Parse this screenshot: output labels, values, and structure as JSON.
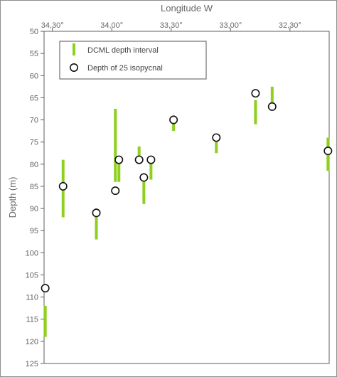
{
  "chart_data": {
    "type": "scatter",
    "title": "",
    "xlabel": "Longitude W",
    "ylabel": "Depth (m)",
    "xlim": [
      34.57,
      32.17
    ],
    "ylim": [
      50,
      125
    ],
    "x_axis_position": "top",
    "y_axis_inverted": true,
    "grid": false,
    "legend_position": "top-left",
    "x_ticks": [
      {
        "value": 34.5,
        "label": "34,30°"
      },
      {
        "value": 34.0,
        "label": "34,00°"
      },
      {
        "value": 33.5,
        "label": "33,30°"
      },
      {
        "value": 33.0,
        "label": "33,00°"
      },
      {
        "value": 32.5,
        "label": "32,30°"
      }
    ],
    "y_ticks": [
      50,
      55,
      60,
      65,
      70,
      75,
      80,
      85,
      90,
      95,
      100,
      105,
      110,
      115,
      120,
      125
    ],
    "series": [
      {
        "name": "DCML depth interval",
        "kind": "interval",
        "color": "#8fcf1f",
        "values": [
          {
            "x": 34.56,
            "y_top": 112,
            "y_bottom": 119
          },
          {
            "x": 34.41,
            "y_top": 79,
            "y_bottom": 92
          },
          {
            "x": 34.13,
            "y_top": 90,
            "y_bottom": 97
          },
          {
            "x": 33.97,
            "y_top": 67.5,
            "y_bottom": 84
          },
          {
            "x": 33.94,
            "y_top": 79,
            "y_bottom": 84
          },
          {
            "x": 33.77,
            "y_top": 76,
            "y_bottom": 80
          },
          {
            "x": 33.73,
            "y_top": 83,
            "y_bottom": 89
          },
          {
            "x": 33.67,
            "y_top": 79,
            "y_bottom": 83.5
          },
          {
            "x": 33.48,
            "y_top": 69,
            "y_bottom": 72.5
          },
          {
            "x": 33.12,
            "y_top": 73.5,
            "y_bottom": 77.5
          },
          {
            "x": 32.79,
            "y_top": 65.5,
            "y_bottom": 71
          },
          {
            "x": 32.65,
            "y_top": 62.5,
            "y_bottom": 67
          },
          {
            "x": 32.18,
            "y_top": 74,
            "y_bottom": 81.5
          }
        ]
      },
      {
        "name": "Depth of 25 isopycnal",
        "kind": "circle",
        "color": "#111111",
        "values": [
          {
            "x": 34.56,
            "y": 108
          },
          {
            "x": 34.41,
            "y": 85
          },
          {
            "x": 34.13,
            "y": 91
          },
          {
            "x": 33.97,
            "y": 86
          },
          {
            "x": 33.94,
            "y": 79
          },
          {
            "x": 33.77,
            "y": 79
          },
          {
            "x": 33.73,
            "y": 83
          },
          {
            "x": 33.67,
            "y": 79
          },
          {
            "x": 33.48,
            "y": 70
          },
          {
            "x": 33.12,
            "y": 74
          },
          {
            "x": 32.79,
            "y": 64
          },
          {
            "x": 32.65,
            "y": 67
          },
          {
            "x": 32.18,
            "y": 77
          }
        ]
      }
    ]
  }
}
